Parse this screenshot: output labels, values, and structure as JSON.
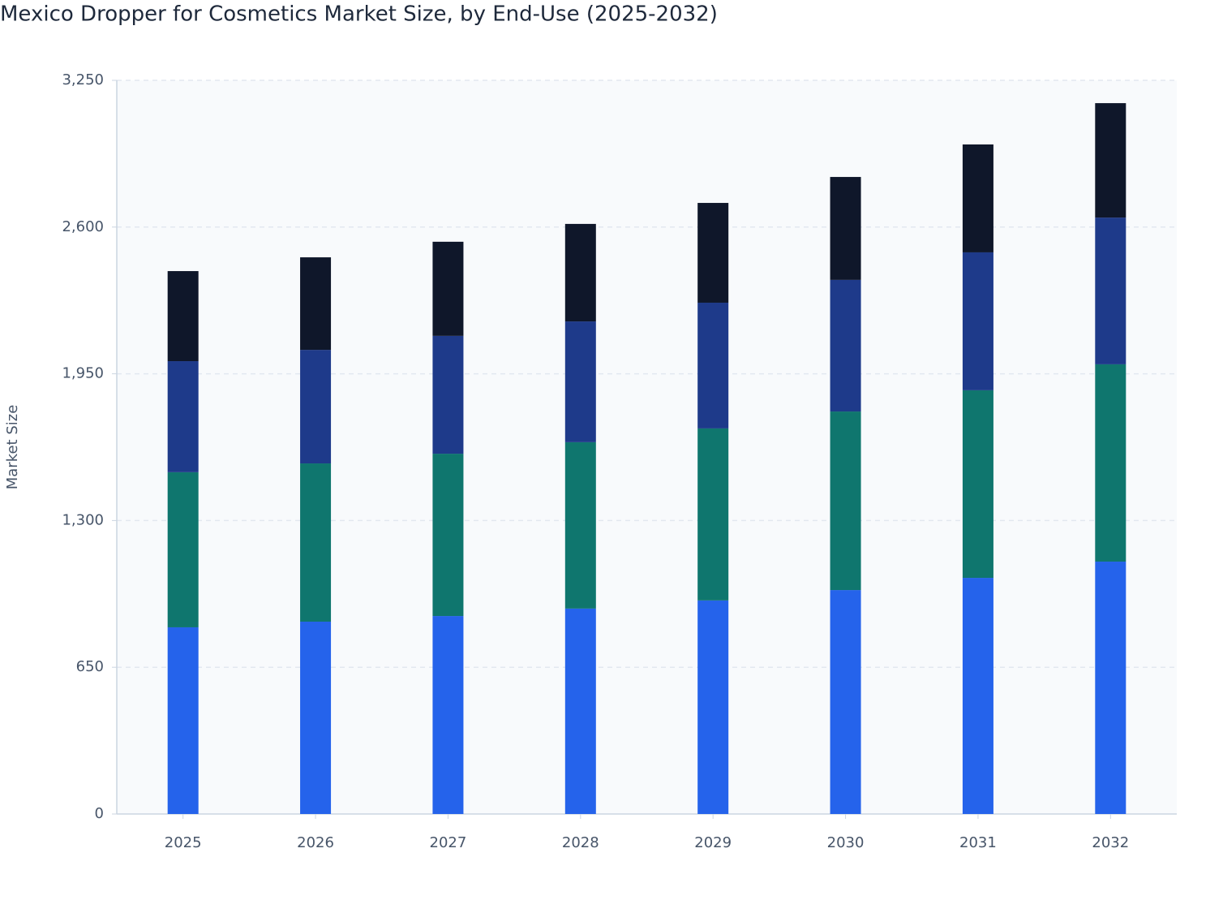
{
  "chart_data": {
    "type": "stacked_bar",
    "title": "Mexico Dropper for Cosmetics Market Size, by End-Use (2025-2032)",
    "y_label": "Market Size",
    "categories": [
      "2025",
      "2026",
      "2027",
      "2028",
      "2029",
      "2030",
      "2031",
      "2032"
    ],
    "series": [
      {
        "color": "#2563eb",
        "values": [
          827,
          852,
          877,
          910,
          946,
          992,
          1046,
          1118
        ]
      },
      {
        "color": "#0f766e",
        "values": [
          687,
          701,
          719,
          737,
          762,
          791,
          831,
          874
        ]
      },
      {
        "color": "#1e3a8a",
        "values": [
          492,
          503,
          522,
          535,
          557,
          583,
          611,
          650
        ]
      },
      {
        "color": "#0f172a",
        "values": [
          399,
          410,
          417,
          432,
          442,
          456,
          478,
          507
        ]
      }
    ],
    "ylim": [
      0,
      3250
    ],
    "yticks": [
      0,
      650,
      {
        "value": 1300,
        "label": "1,300"
      },
      {
        "value": 1950,
        "label": "1,950"
      },
      {
        "value": 2600,
        "label": "2,600"
      },
      {
        "value": 3250,
        "label": "3,250"
      }
    ],
    "grid": true
  }
}
